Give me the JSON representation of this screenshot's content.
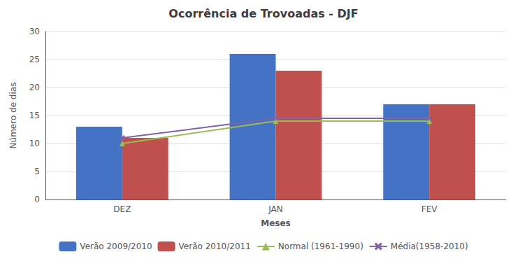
{
  "chart_data": {
    "type": "bar",
    "title": "Ocorrência de Trovoadas - DJF",
    "xlabel": "Meses",
    "ylabel": "Número de dias",
    "categories": [
      "DEZ",
      "JAN",
      "FEV"
    ],
    "series": [
      {
        "name": "Verão 2009/2010",
        "type": "bar",
        "color": "#4472C4",
        "values": [
          13,
          26,
          17
        ]
      },
      {
        "name": "Verão 2010/2011",
        "type": "bar",
        "color": "#C0504D",
        "values": [
          11,
          23,
          17
        ]
      },
      {
        "name": "Normal (1961-1990)",
        "type": "line",
        "color": "#9BBB59",
        "marker": "triangle",
        "values": [
          10,
          14,
          14
        ]
      },
      {
        "name": "Média(1958-2010)",
        "type": "line",
        "color": "#8064A2",
        "marker": "x",
        "values": [
          11,
          14.5,
          14.5
        ]
      }
    ],
    "ylim": [
      0,
      30
    ],
    "yticks": [
      0,
      5,
      10,
      15,
      20,
      25,
      30
    ],
    "grid": true,
    "legend": "bottom"
  }
}
